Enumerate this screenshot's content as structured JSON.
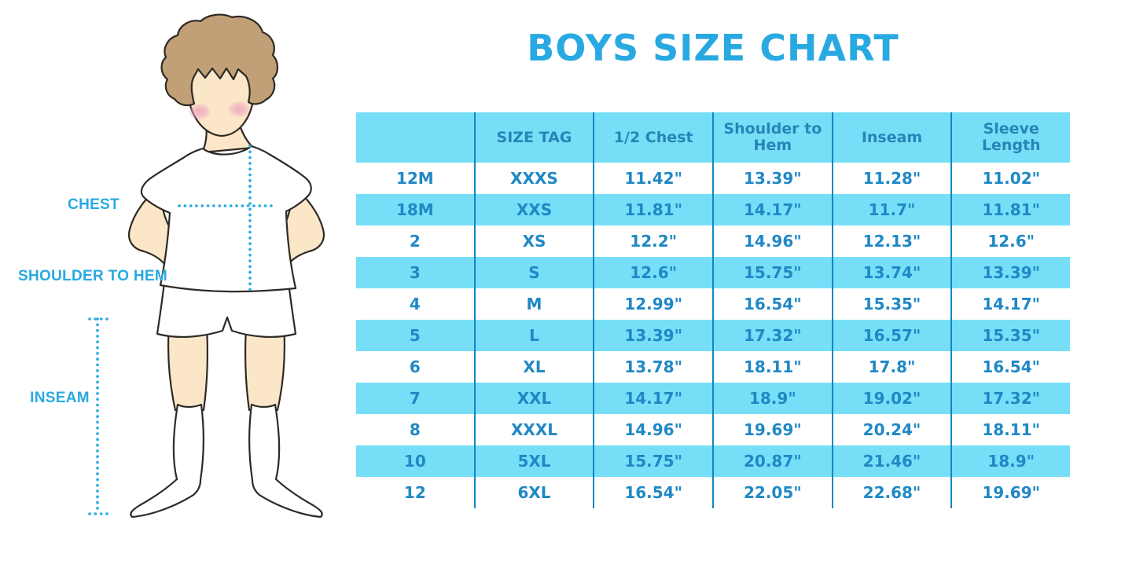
{
  "title": "BOYS SIZE CHART",
  "figure": {
    "description": "illustration of a boy in white t-shirt, shorts and socks with dotted measurement guides",
    "labels": {
      "chest": "CHEST",
      "shoulder_to_hem": "SHOULDER TO HEM",
      "inseam": "INSEAM"
    }
  },
  "colors": {
    "accent": "#29a9e1",
    "header_bg": "#76dff7",
    "row_alt_bg": "#76dff7",
    "header_text": "#2884b8",
    "cell_text": "#1f88c5",
    "divider": "#1287c2",
    "hair": "#c2a077",
    "skin": "#fbe7c8",
    "blush": "#f0a9c2",
    "outline": "#2e2a26"
  },
  "chart_data": {
    "type": "table",
    "title": "BOYS SIZE CHART",
    "columns": [
      "",
      "SIZE TAG",
      "1/2 Chest",
      "Shoulder to Hem",
      "Inseam",
      "Sleeve Length"
    ],
    "rows": [
      [
        "12M",
        "XXXS",
        "11.42\"",
        "13.39\"",
        "11.28\"",
        "11.02\""
      ],
      [
        "18M",
        "XXS",
        "11.81\"",
        "14.17\"",
        "11.7\"",
        "11.81\""
      ],
      [
        "2",
        "XS",
        "12.2\"",
        "14.96\"",
        "12.13\"",
        "12.6\""
      ],
      [
        "3",
        "S",
        "12.6\"",
        "15.75\"",
        "13.74\"",
        "13.39\""
      ],
      [
        "4",
        "M",
        "12.99\"",
        "16.54\"",
        "15.35\"",
        "14.17\""
      ],
      [
        "5",
        "L",
        "13.39\"",
        "17.32\"",
        "16.57\"",
        "15.35\""
      ],
      [
        "6",
        "XL",
        "13.78\"",
        "18.11\"",
        "17.8\"",
        "16.54\""
      ],
      [
        "7",
        "XXL",
        "14.17\"",
        "18.9\"",
        "19.02\"",
        "17.32\""
      ],
      [
        "8",
        "XXXL",
        "14.96\"",
        "19.69\"",
        "20.24\"",
        "18.11\""
      ],
      [
        "10",
        "5XL",
        "15.75\"",
        "20.87\"",
        "21.46\"",
        "18.9\""
      ],
      [
        "12",
        "6XL",
        "16.54\"",
        "22.05\"",
        "22.68\"",
        "19.69\""
      ]
    ],
    "row_striping": "white / light-cyan alternating, header light-cyan",
    "legend_position": "none",
    "grid": "vertical column dividers only"
  }
}
